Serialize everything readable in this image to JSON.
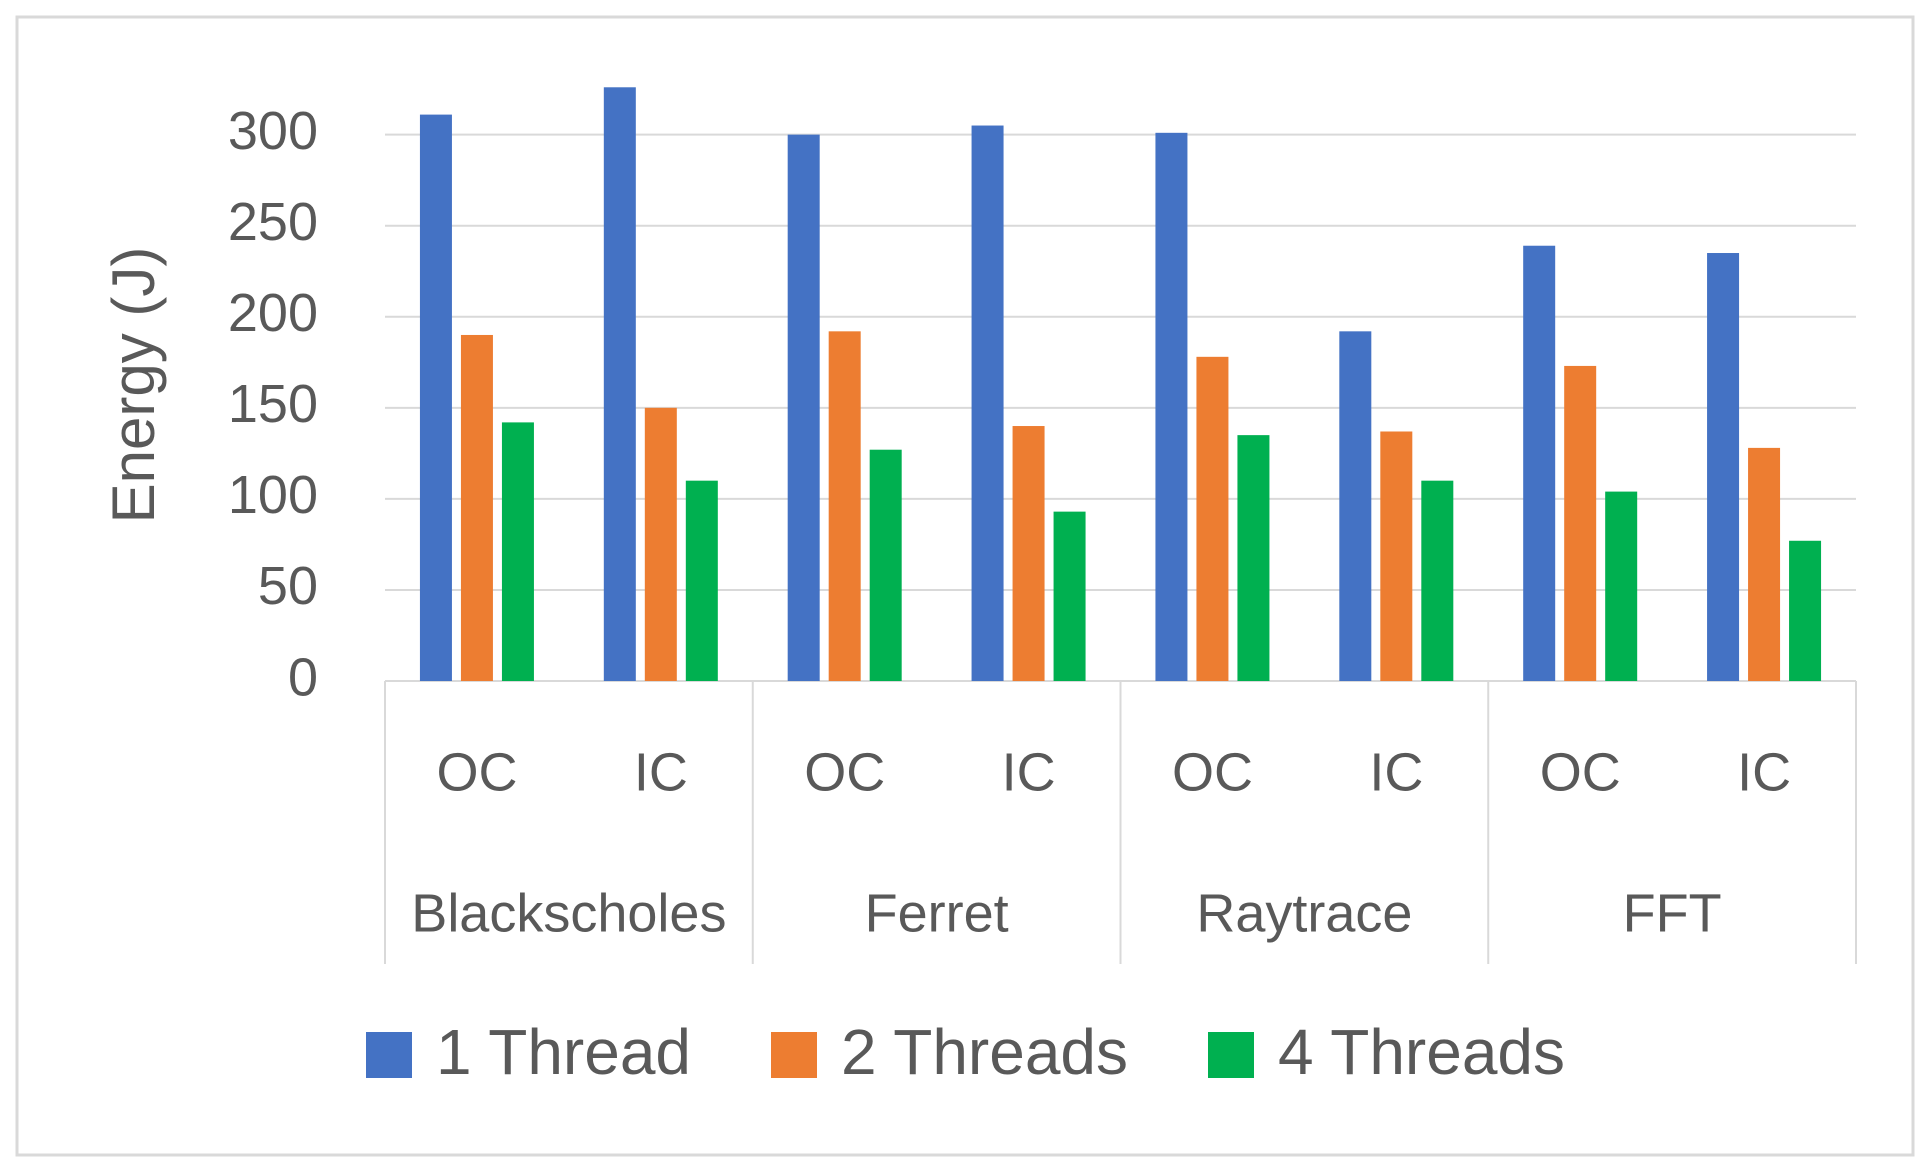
{
  "chart_data": {
    "type": "bar",
    "y_label": "Energy (J)",
    "categories": [
      "OC",
      "IC",
      "OC",
      "IC",
      "OC",
      "IC",
      "OC",
      "IC"
    ],
    "groups": [
      "Blackscholes",
      "Ferret",
      "Raytrace",
      "FFT"
    ],
    "series": [
      {
        "name": "1 Thread",
        "color": "#4472c4",
        "values": [
          311,
          326,
          300,
          305,
          301,
          192,
          239,
          235
        ]
      },
      {
        "name": "2 Threads",
        "color": "#ed7d31",
        "values": [
          190,
          150,
          192,
          140,
          178,
          137,
          173,
          128
        ]
      },
      {
        "name": "4 Threads",
        "color": "#00b050",
        "values": [
          142,
          110,
          127,
          93,
          135,
          110,
          104,
          77
        ]
      }
    ],
    "ylim": [
      0,
      330
    ],
    "yticks": [
      0,
      50,
      100,
      150,
      200,
      250,
      300
    ],
    "grid": true,
    "legend": "bottom"
  }
}
